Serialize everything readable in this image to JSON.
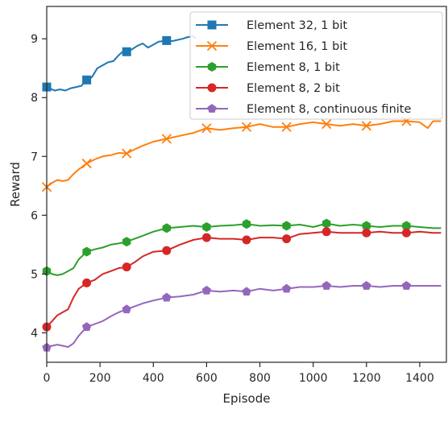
{
  "chart_data": {
    "type": "line",
    "xlabel": "Episode",
    "ylabel": "Reward",
    "xlim": [
      0,
      1500
    ],
    "ylim": [
      3.5,
      9.55
    ],
    "xticks": [
      0,
      200,
      400,
      600,
      800,
      1000,
      1200,
      1400
    ],
    "yticks": [
      4,
      5,
      6,
      7,
      8,
      9
    ],
    "legend_position": "top-right",
    "series": [
      {
        "name": "Element 32, 1 bit",
        "color": "#1f77b4",
        "marker": "square",
        "x": [
          0,
          15,
          30,
          50,
          70,
          90,
          110,
          130,
          150,
          170,
          190,
          210,
          230,
          250,
          270,
          290,
          300,
          320,
          340,
          360,
          380,
          400,
          420,
          450,
          470,
          490,
          510,
          530,
          550,
          560
        ],
        "y": [
          8.18,
          8.15,
          8.12,
          8.14,
          8.12,
          8.16,
          8.18,
          8.2,
          8.3,
          8.35,
          8.5,
          8.55,
          8.6,
          8.62,
          8.72,
          8.8,
          8.78,
          8.82,
          8.88,
          8.92,
          8.85,
          8.9,
          8.95,
          8.97,
          8.96,
          8.98,
          9.0,
          9.03,
          9.04,
          9.01
        ],
        "marker_x": [
          0,
          150,
          300,
          450
        ]
      },
      {
        "name": "Element 16, 1 bit",
        "color": "#ff7f0e",
        "marker": "x",
        "x": [
          0,
          20,
          40,
          60,
          80,
          100,
          120,
          150,
          180,
          210,
          240,
          270,
          300,
          330,
          360,
          400,
          450,
          500,
          550,
          600,
          650,
          700,
          750,
          800,
          850,
          900,
          950,
          1000,
          1050,
          1100,
          1150,
          1200,
          1250,
          1300,
          1350,
          1400,
          1430,
          1450,
          1480
        ],
        "y": [
          6.48,
          6.55,
          6.6,
          6.58,
          6.6,
          6.7,
          6.78,
          6.88,
          6.95,
          7.0,
          7.02,
          7.06,
          7.05,
          7.12,
          7.18,
          7.25,
          7.3,
          7.35,
          7.4,
          7.48,
          7.45,
          7.48,
          7.5,
          7.55,
          7.5,
          7.5,
          7.55,
          7.58,
          7.55,
          7.52,
          7.55,
          7.52,
          7.55,
          7.6,
          7.6,
          7.58,
          7.48,
          7.6,
          7.6
        ],
        "marker_x": [
          0,
          150,
          300,
          450,
          600,
          750,
          900,
          1050,
          1200,
          1350
        ]
      },
      {
        "name": "Element 8, 1 bit",
        "color": "#2ca02c",
        "marker": "hexagon",
        "x": [
          0,
          20,
          40,
          60,
          80,
          100,
          120,
          150,
          180,
          210,
          240,
          270,
          300,
          330,
          360,
          400,
          450,
          500,
          550,
          600,
          650,
          700,
          750,
          800,
          850,
          900,
          950,
          1000,
          1050,
          1100,
          1150,
          1200,
          1250,
          1300,
          1350,
          1400,
          1450,
          1480
        ],
        "y": [
          5.05,
          5.0,
          4.98,
          5.0,
          5.05,
          5.1,
          5.25,
          5.38,
          5.42,
          5.45,
          5.5,
          5.52,
          5.55,
          5.6,
          5.65,
          5.72,
          5.78,
          5.8,
          5.82,
          5.8,
          5.82,
          5.83,
          5.85,
          5.82,
          5.83,
          5.82,
          5.84,
          5.8,
          5.86,
          5.82,
          5.84,
          5.82,
          5.8,
          5.82,
          5.82,
          5.8,
          5.78,
          5.78
        ],
        "marker_x": [
          0,
          150,
          300,
          450,
          600,
          750,
          900,
          1050,
          1200,
          1350
        ]
      },
      {
        "name": "Element 8, 2 bit",
        "color": "#d62728",
        "marker": "circle",
        "x": [
          0,
          20,
          40,
          60,
          80,
          100,
          120,
          150,
          180,
          210,
          240,
          270,
          300,
          330,
          360,
          400,
          450,
          500,
          550,
          600,
          650,
          700,
          750,
          800,
          850,
          900,
          950,
          1000,
          1050,
          1100,
          1150,
          1200,
          1250,
          1300,
          1350,
          1400,
          1450,
          1480
        ],
        "y": [
          4.1,
          4.2,
          4.3,
          4.35,
          4.4,
          4.6,
          4.75,
          4.85,
          4.9,
          5.0,
          5.05,
          5.1,
          5.12,
          5.2,
          5.3,
          5.38,
          5.4,
          5.5,
          5.58,
          5.62,
          5.6,
          5.6,
          5.58,
          5.62,
          5.62,
          5.6,
          5.68,
          5.7,
          5.72,
          5.7,
          5.7,
          5.7,
          5.72,
          5.7,
          5.7,
          5.72,
          5.7,
          5.7
        ],
        "marker_x": [
          0,
          150,
          300,
          450,
          600,
          750,
          900,
          1050,
          1200,
          1350
        ]
      },
      {
        "name": "Element 8, continuous finite",
        "color": "#9467bd",
        "marker": "pentagon",
        "x": [
          0,
          20,
          40,
          60,
          80,
          100,
          120,
          150,
          180,
          210,
          240,
          270,
          300,
          330,
          360,
          400,
          450,
          500,
          550,
          600,
          650,
          700,
          750,
          800,
          850,
          900,
          950,
          1000,
          1050,
          1100,
          1150,
          1200,
          1250,
          1300,
          1350,
          1400,
          1450,
          1480
        ],
        "y": [
          3.75,
          3.78,
          3.8,
          3.78,
          3.76,
          3.82,
          3.95,
          4.1,
          4.15,
          4.2,
          4.28,
          4.35,
          4.4,
          4.45,
          4.5,
          4.55,
          4.6,
          4.62,
          4.65,
          4.72,
          4.7,
          4.72,
          4.7,
          4.75,
          4.72,
          4.75,
          4.78,
          4.78,
          4.8,
          4.78,
          4.8,
          4.8,
          4.78,
          4.8,
          4.8,
          4.8,
          4.8,
          4.8
        ],
        "marker_x": [
          0,
          150,
          300,
          450,
          600,
          750,
          900,
          1050,
          1200,
          1350
        ]
      }
    ]
  }
}
